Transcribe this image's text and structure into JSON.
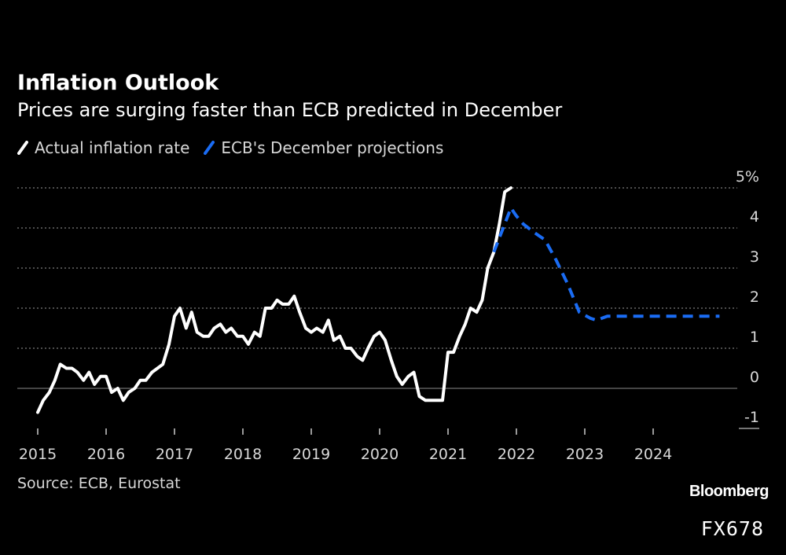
{
  "title": "Inflation Outlook",
  "subtitle": "Prices are surging faster than ECB predicted in December",
  "legend": {
    "actual": "Actual inflation rate",
    "projection": "ECB's December projections"
  },
  "source": "Source: ECB, Eurostat",
  "brand": "Bloomberg",
  "code": "FX678",
  "colors": {
    "background": "#000000",
    "actual": "#ffffff",
    "projection": "#1a6cf4",
    "grid": "#9a9a9a"
  },
  "chart_data": {
    "type": "line",
    "title": "Inflation Outlook",
    "xlabel": "",
    "ylabel": "",
    "y_unit": "%",
    "xlim": [
      2015.0,
      2025.0
    ],
    "ylim": [
      -1,
      5
    ],
    "y_ticks": [
      5,
      4,
      3,
      2,
      1,
      0,
      -1
    ],
    "y_tick_labels": [
      "5%",
      "4",
      "3",
      "2",
      "1",
      "0",
      "-1"
    ],
    "x_ticks": [
      2015,
      2016,
      2017,
      2018,
      2019,
      2020,
      2021,
      2022,
      2023,
      2024
    ],
    "x_tick_labels": [
      "2015",
      "2016",
      "2017",
      "2018",
      "2019",
      "2020",
      "2021",
      "2022",
      "2023",
      "2024"
    ],
    "series": [
      {
        "name": "Actual inflation rate",
        "style": "solid",
        "color": "#ffffff",
        "x": [
          2015.0,
          2015.08,
          2015.17,
          2015.25,
          2015.33,
          2015.42,
          2015.5,
          2015.58,
          2015.67,
          2015.75,
          2015.83,
          2015.92,
          2016.0,
          2016.08,
          2016.17,
          2016.25,
          2016.33,
          2016.42,
          2016.5,
          2016.58,
          2016.67,
          2016.75,
          2016.83,
          2016.92,
          2017.0,
          2017.08,
          2017.17,
          2017.25,
          2017.33,
          2017.42,
          2017.5,
          2017.58,
          2017.67,
          2017.75,
          2017.83,
          2017.92,
          2018.0,
          2018.08,
          2018.17,
          2018.25,
          2018.33,
          2018.42,
          2018.5,
          2018.58,
          2018.67,
          2018.75,
          2018.83,
          2018.92,
          2019.0,
          2019.08,
          2019.17,
          2019.25,
          2019.33,
          2019.42,
          2019.5,
          2019.58,
          2019.67,
          2019.75,
          2019.83,
          2019.92,
          2020.0,
          2020.08,
          2020.17,
          2020.25,
          2020.33,
          2020.42,
          2020.5,
          2020.58,
          2020.67,
          2020.75,
          2020.83,
          2020.92,
          2021.0,
          2021.08,
          2021.17,
          2021.25,
          2021.33,
          2021.42,
          2021.5,
          2021.58,
          2021.67,
          2021.75,
          2021.83,
          2021.92
        ],
        "values": [
          -0.6,
          -0.3,
          -0.1,
          0.2,
          0.6,
          0.5,
          0.5,
          0.4,
          0.2,
          0.4,
          0.1,
          0.3,
          0.3,
          -0.1,
          0.0,
          -0.3,
          -0.1,
          0.0,
          0.2,
          0.2,
          0.4,
          0.5,
          0.6,
          1.1,
          1.8,
          2.0,
          1.5,
          1.9,
          1.4,
          1.3,
          1.3,
          1.5,
          1.6,
          1.4,
          1.5,
          1.3,
          1.3,
          1.1,
          1.4,
          1.3,
          2.0,
          2.0,
          2.2,
          2.1,
          2.1,
          2.3,
          1.9,
          1.5,
          1.4,
          1.5,
          1.4,
          1.7,
          1.2,
          1.3,
          1.0,
          1.0,
          0.8,
          0.7,
          1.0,
          1.3,
          1.4,
          1.2,
          0.7,
          0.3,
          0.1,
          0.3,
          0.4,
          -0.2,
          -0.3,
          -0.3,
          -0.3,
          -0.3,
          0.9,
          0.9,
          1.3,
          1.6,
          2.0,
          1.9,
          2.2,
          3.0,
          3.4,
          4.1,
          4.9,
          5.0
        ]
      },
      {
        "name": "ECB's December projections",
        "style": "dashed",
        "color": "#1a6cf4",
        "x": [
          2021.67,
          2021.83,
          2021.92,
          2022.0,
          2022.1,
          2022.25,
          2022.42,
          2022.58,
          2022.75,
          2022.92,
          2023.08,
          2023.17,
          2023.33,
          2023.5,
          2023.75,
          2024.0,
          2024.25,
          2024.5,
          2024.75,
          2024.97
        ],
        "values": [
          3.4,
          4.1,
          4.5,
          4.3,
          4.1,
          3.9,
          3.7,
          3.2,
          2.6,
          1.9,
          1.75,
          1.7,
          1.8,
          1.8,
          1.8,
          1.8,
          1.8,
          1.8,
          1.8,
          1.8
        ]
      }
    ]
  }
}
